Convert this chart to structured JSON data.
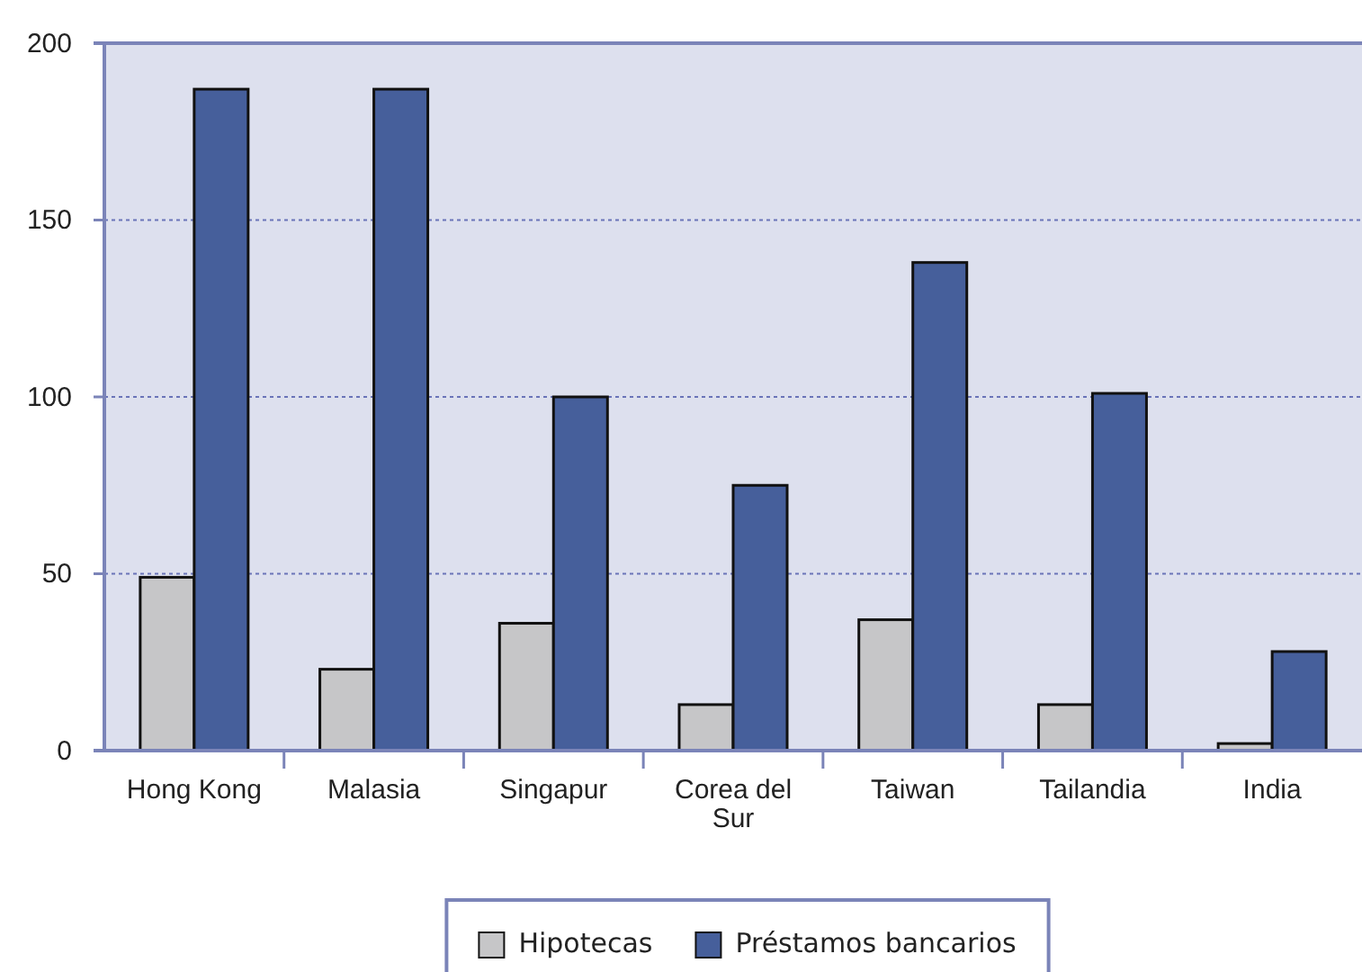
{
  "chart_data": {
    "type": "bar",
    "categories": [
      "Hong Kong",
      "Malasia",
      "Singapur",
      "Corea del Sur",
      "Taiwan",
      "Tailandia",
      "India"
    ],
    "series": [
      {
        "name": "Hipotecas",
        "color": "#c6c6c8",
        "values": [
          49,
          23,
          36,
          13,
          37,
          13,
          2
        ]
      },
      {
        "name": "Préstamos bancarios",
        "color": "#465f9b",
        "values": [
          187,
          187,
          100,
          75,
          138,
          101,
          28
        ]
      }
    ],
    "ylim": [
      0,
      200
    ],
    "yticks": [
      0,
      50,
      100,
      150,
      200
    ],
    "grid": "y",
    "legend": "bottom"
  }
}
